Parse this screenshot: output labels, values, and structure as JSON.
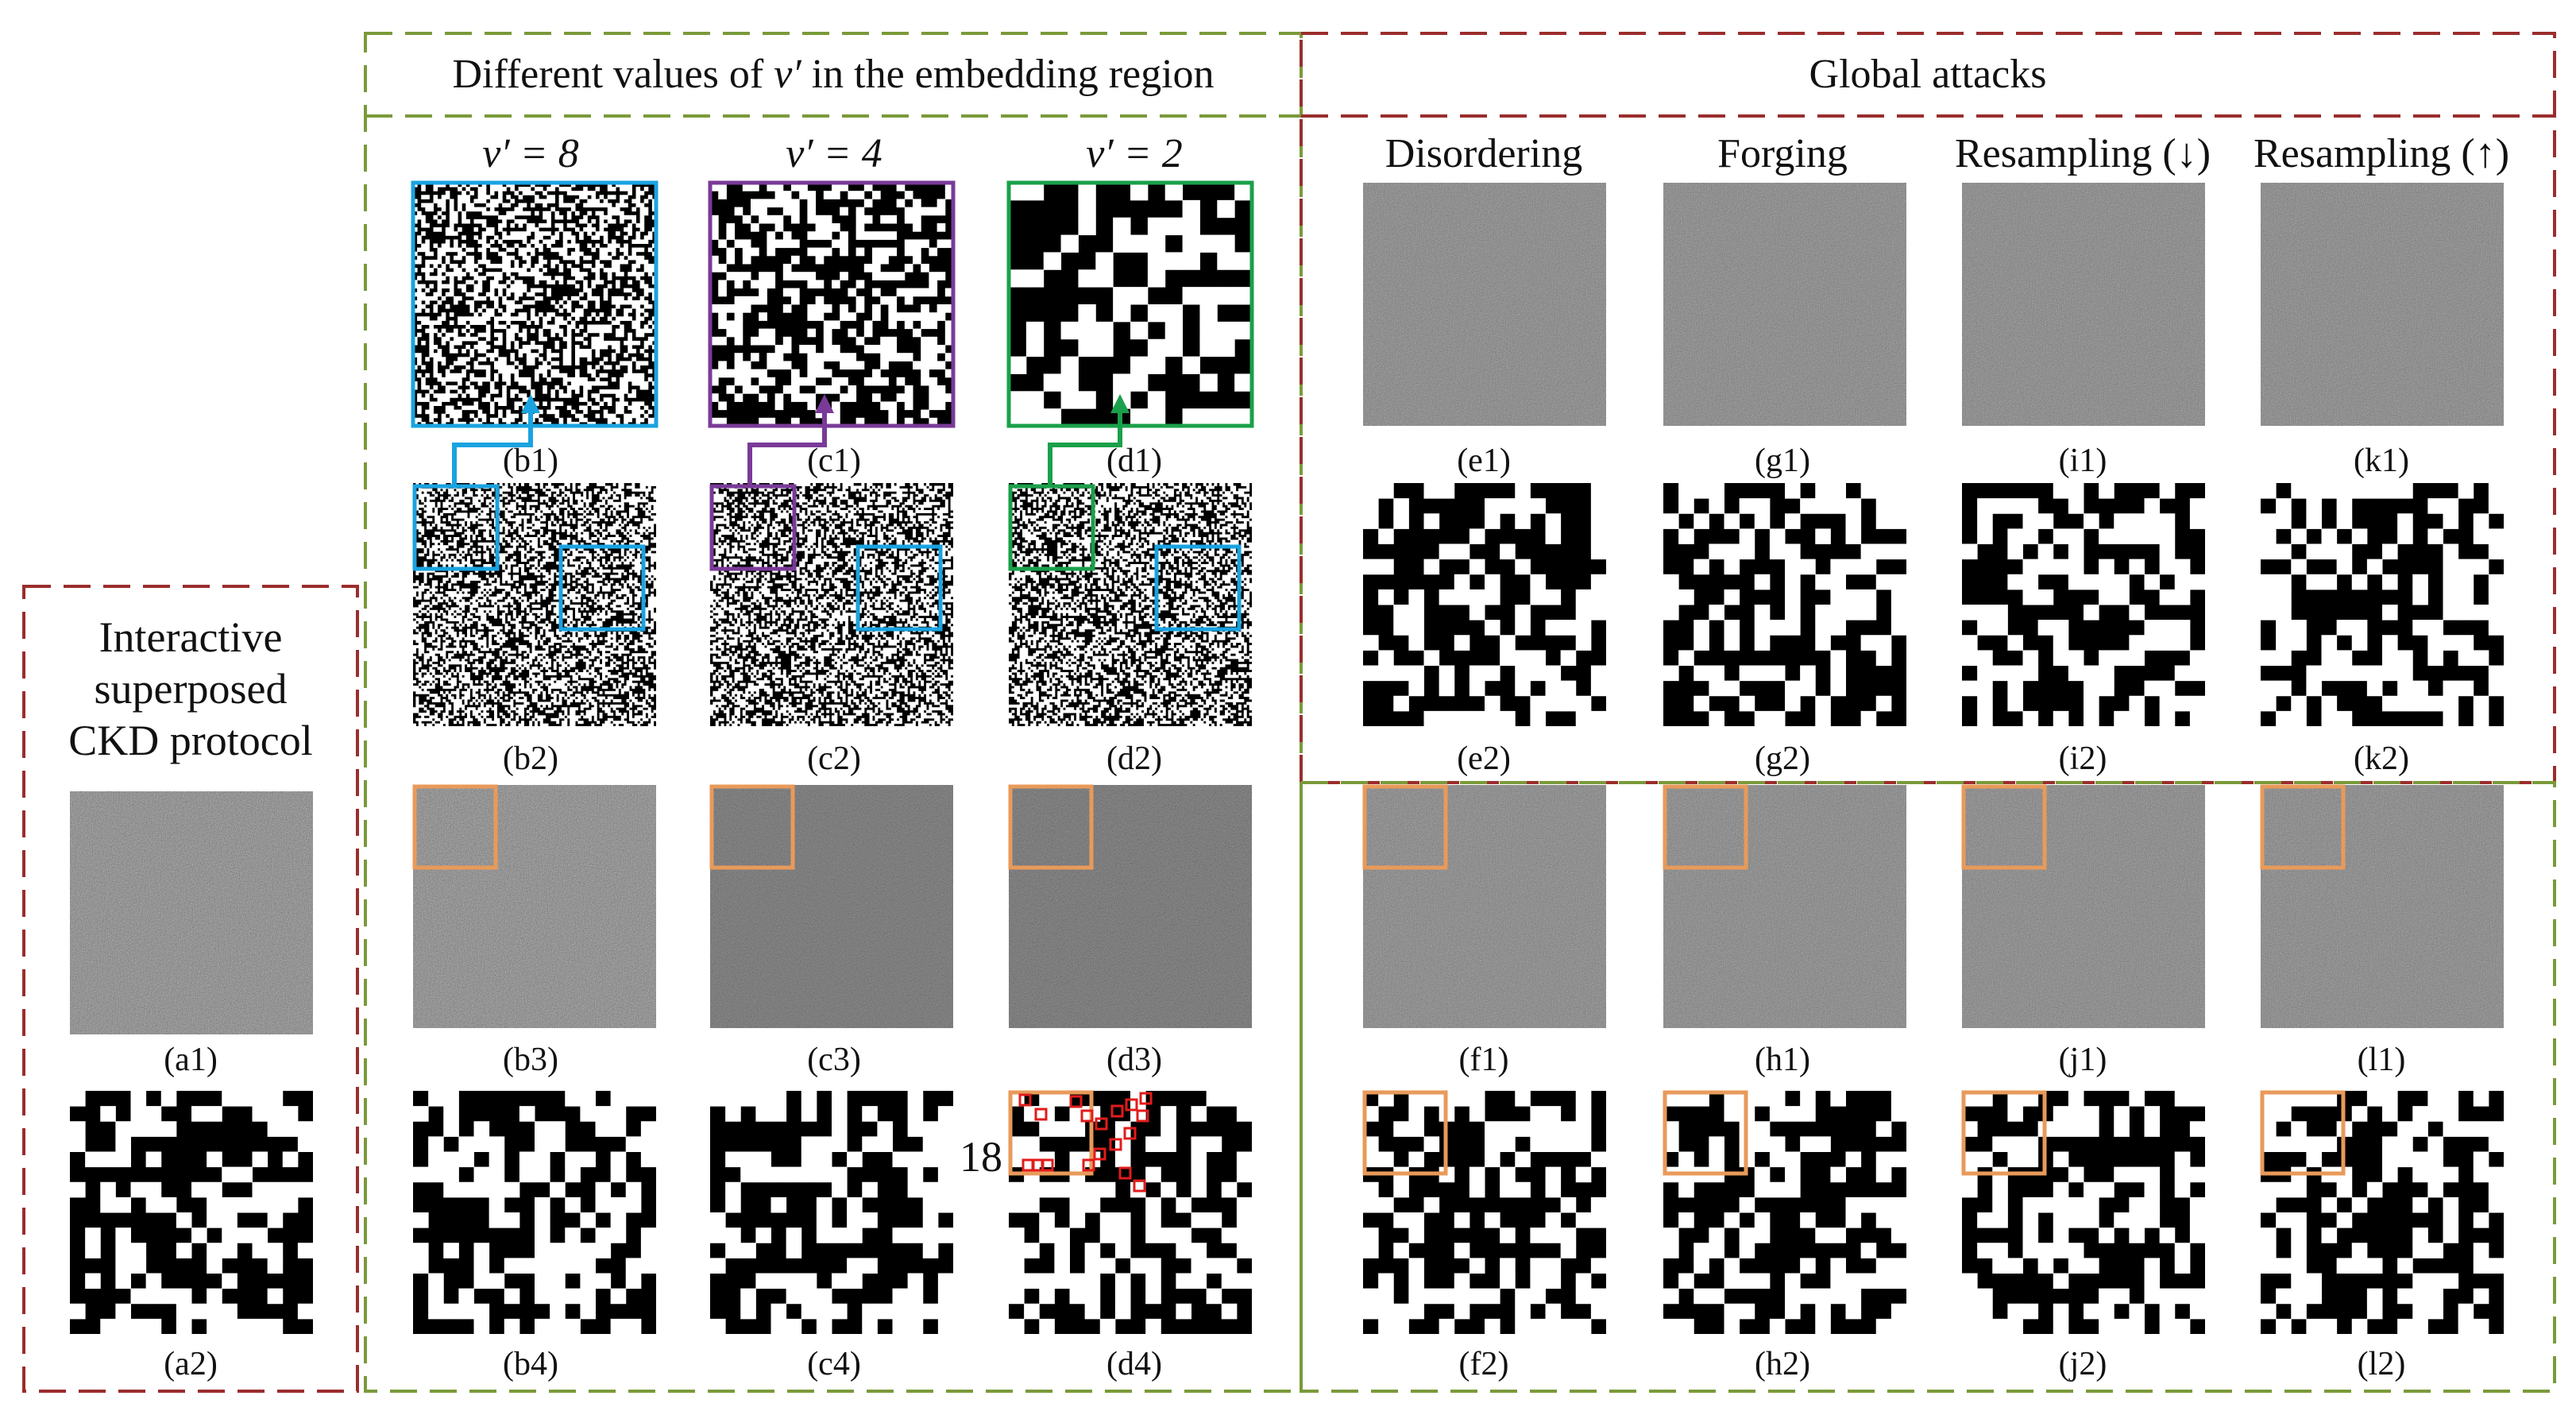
{
  "colors": {
    "red_frame": "#9b2d2d",
    "green_frame": "#7a9a3a",
    "blue_box": "#1aa3e0",
    "purple_box": "#7a3a98",
    "green_box": "#1aa04a",
    "orange_box": "#e89a5a",
    "error_mark": "#e21b1b"
  },
  "left_panel": {
    "title_lines": [
      "Interactive",
      "superposed",
      "CKD protocol"
    ],
    "labels": [
      "(a1)",
      "(a2)"
    ]
  },
  "middle_panel": {
    "title_prefix": "Different values of ",
    "title_var": "ν′",
    "title_suffix": " in the embedding region",
    "column_headers": [
      "ν′ = 8",
      "ν′ = 4",
      "ν′ = 2"
    ],
    "labels": {
      "row1": [
        "(b1)",
        "(c1)",
        "(d1)"
      ],
      "row2": [
        "(b2)",
        "(c2)",
        "(d2)"
      ],
      "row3": [
        "(b3)",
        "(c3)",
        "(d3)"
      ],
      "row4": [
        "(b4)",
        "(c4)",
        "(d4)"
      ]
    },
    "error_count": "18"
  },
  "right_panel": {
    "title": "Global attacks",
    "column_headers": [
      "Disordering",
      "Forging",
      "Resampling (↓)",
      "Resampling (↑)"
    ],
    "labels": {
      "row1": [
        "(e1)",
        "(g1)",
        "(i1)",
        "(k1)"
      ],
      "row2": [
        "(e2)",
        "(g2)",
        "(i2)",
        "(k2)"
      ],
      "row3": [
        "(f1)",
        "(h1)",
        "(j1)",
        "(l1)"
      ],
      "row4": [
        "(f2)",
        "(h2)",
        "(j2)",
        "(l2)"
      ]
    }
  }
}
